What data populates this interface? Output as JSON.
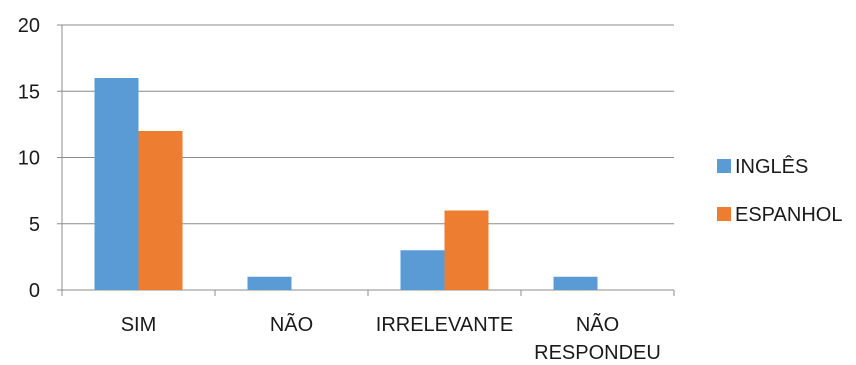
{
  "chart_data": {
    "type": "bar",
    "categories": [
      [
        "SIM"
      ],
      [
        "NÃO"
      ],
      [
        "IRRELEVANTE"
      ],
      [
        "NÃO",
        "RESPONDEU"
      ]
    ],
    "series": [
      {
        "name": "INGLÊS",
        "values": [
          16,
          1,
          3,
          1
        ]
      },
      {
        "name": "ESPANHOL",
        "values": [
          12,
          0,
          6,
          0
        ]
      }
    ],
    "ylim": [
      0,
      20
    ],
    "yticks": [
      0,
      5,
      10,
      15,
      20
    ],
    "grid": true,
    "legend_position": "right",
    "colors": {
      "INGLÊS": "#5b9bd5",
      "ESPANHOL": "#ed7d31",
      "gridline": "#8c8c8c",
      "axis": "#8c8c8c"
    }
  }
}
